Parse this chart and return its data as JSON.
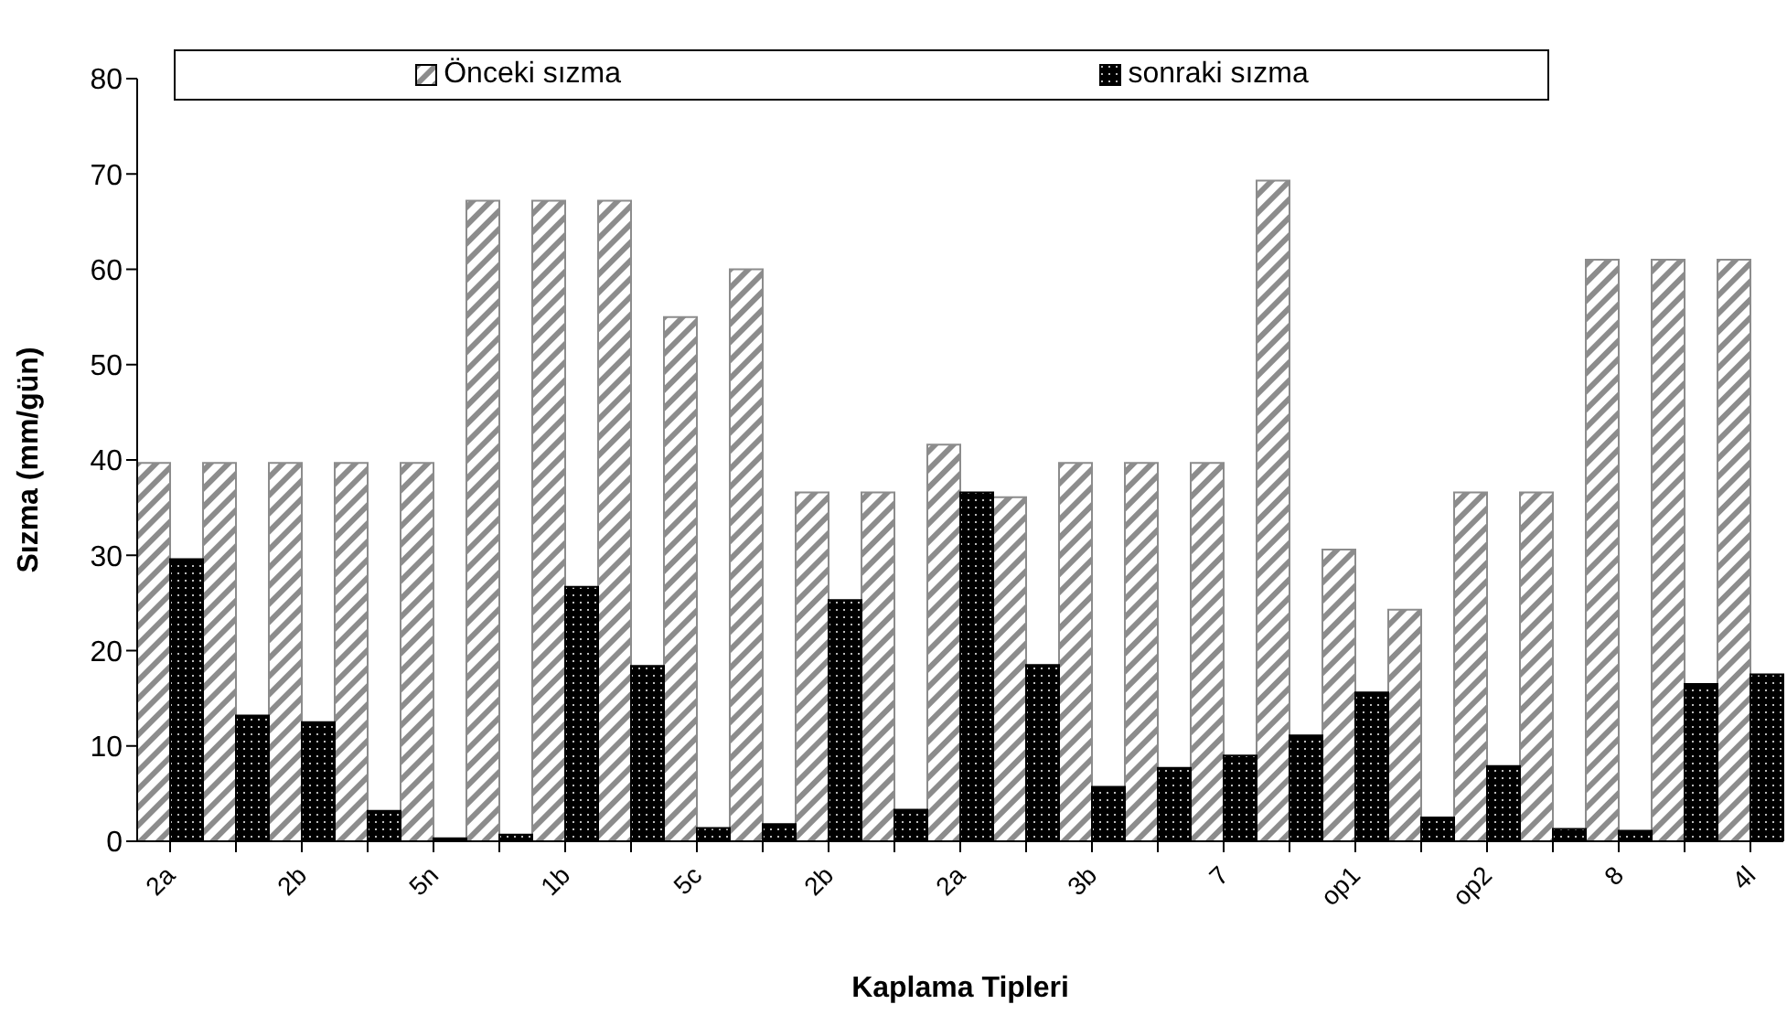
{
  "chart_data": {
    "type": "bar",
    "xlabel": "Kaplama Tipleri",
    "ylabel": "Sızma  (mm/gün)",
    "categories": [
      "2a",
      null,
      "2b",
      null,
      "5n",
      null,
      "1b",
      null,
      "5c",
      null,
      "2b",
      null,
      "2a",
      null,
      "3b",
      null,
      "7",
      null,
      "op1",
      null,
      "op2",
      null,
      "8",
      null,
      "4l"
    ],
    "series": [
      {
        "name": "Önceki sızma",
        "color": "#8c8c8c",
        "values": [
          39.7,
          39.7,
          39.7,
          39.7,
          39.7,
          67.2,
          67.2,
          67.2,
          55,
          60,
          36.6,
          36.6,
          41.6,
          36.1,
          39.7,
          39.7,
          39.7,
          69.3,
          30.6,
          24.3,
          36.6,
          36.6,
          61,
          61,
          61
        ]
      },
      {
        "name": "sonraki sızma",
        "color": "#000000",
        "values": [
          29.6,
          13.2,
          12.5,
          3.2,
          0.3,
          0.7,
          26.7,
          18.4,
          1.4,
          1.8,
          25.3,
          3.3,
          36.6,
          18.5,
          5.7,
          7.7,
          9,
          11.1,
          15.6,
          2.5,
          7.9,
          1.3,
          1.1,
          16.5,
          17.5
        ]
      }
    ],
    "ylim": [
      0,
      80
    ],
    "yticks": [
      0,
      10,
      20,
      30,
      40,
      50,
      60,
      70,
      80
    ],
    "grid": false,
    "legend": "top"
  }
}
